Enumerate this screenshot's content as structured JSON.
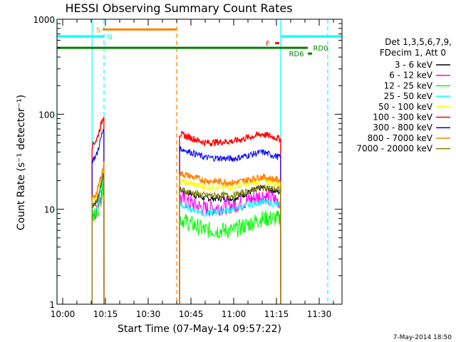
{
  "chart_data": {
    "type": "line",
    "title": "HESSI Observing Summary Count Rates",
    "xlabel": "Start Time (07-May-14 09:57:22)",
    "ylabel": "Count Rate (s⁻¹ detector⁻¹)",
    "yscale": "log",
    "ylim": [
      1,
      1000
    ],
    "xlim_minutes": [
      -2,
      98
    ],
    "x_unit": "minutes after 10:00 UT",
    "yticks": [
      "1",
      "10",
      "100",
      "1000"
    ],
    "xticks": [
      {
        "t": 0,
        "label": "10:00"
      },
      {
        "t": 15,
        "label": "10:15"
      },
      {
        "t": 30,
        "label": "10:30"
      },
      {
        "t": 45,
        "label": "10:45"
      },
      {
        "t": 60,
        "label": "11:00"
      },
      {
        "t": 75,
        "label": "11:15"
      },
      {
        "t": 90,
        "label": "11:30"
      }
    ],
    "legend": {
      "placement": "right",
      "header": [
        "Det 1,3,5,6,7,9,",
        "FDecim 1, Att 0"
      ],
      "entries": [
        {
          "label": "3 - 6 keV",
          "color": "#000000"
        },
        {
          "label": "6 - 12 keV",
          "color": "#ff00ff"
        },
        {
          "label": "12 - 25 keV",
          "color": "#00ff00"
        },
        {
          "label": "25 - 50 keV",
          "color": "#00ffff"
        },
        {
          "label": "50 - 100 keV",
          "color": "#ffff00"
        },
        {
          "label": "100 - 300 keV",
          "color": "#ff0000"
        },
        {
          "label": "300 - 800 keV",
          "color": "#0000ff"
        },
        {
          "label": "800 - 7000 keV",
          "color": "#ff8000"
        },
        {
          "label": "7000 - 20000 keV",
          "color": "#808000"
        }
      ]
    },
    "segments": [
      {
        "t_start": 10.3,
        "t_end": 14.5
      },
      {
        "t_start": 41.0,
        "t_end": 76.5
      }
    ],
    "series": [
      {
        "name": "3 - 6 keV",
        "color": "#000000",
        "points": [
          [
            10.3,
            11
          ],
          [
            12,
            12
          ],
          [
            14.5,
            25
          ],
          [
            41,
            16
          ],
          [
            50,
            13
          ],
          [
            60,
            13
          ],
          [
            70,
            17
          ],
          [
            76.5,
            15
          ]
        ]
      },
      {
        "name": "6 - 12 keV",
        "color": "#ff00ff",
        "points": [
          [
            10.3,
            9
          ],
          [
            12,
            10
          ],
          [
            14.5,
            20
          ],
          [
            41,
            13
          ],
          [
            50,
            10
          ],
          [
            60,
            11
          ],
          [
            70,
            14
          ],
          [
            76.5,
            12
          ]
        ]
      },
      {
        "name": "12 - 25 keV",
        "color": "#00ff00",
        "points": [
          [
            10.3,
            8
          ],
          [
            12,
            9
          ],
          [
            14.5,
            18
          ],
          [
            41,
            8
          ],
          [
            50,
            6
          ],
          [
            60,
            6
          ],
          [
            70,
            8
          ],
          [
            76.5,
            8
          ]
        ]
      },
      {
        "name": "25 - 50 keV",
        "color": "#00ffff",
        "points": [
          [
            10.3,
            9
          ],
          [
            12,
            10
          ],
          [
            14.5,
            22
          ],
          [
            41,
            11
          ],
          [
            50,
            9
          ],
          [
            60,
            10
          ],
          [
            70,
            12
          ],
          [
            76.5,
            11
          ]
        ]
      },
      {
        "name": "50 - 100 keV",
        "color": "#ffff00",
        "points": [
          [
            10.3,
            12
          ],
          [
            12,
            14
          ],
          [
            14.5,
            28
          ],
          [
            41,
            20
          ],
          [
            50,
            17
          ],
          [
            60,
            17
          ],
          [
            70,
            20
          ],
          [
            76.5,
            18
          ]
        ]
      },
      {
        "name": "100 - 300 keV",
        "color": "#ff0000",
        "points": [
          [
            10.3,
            46
          ],
          [
            12,
            55
          ],
          [
            14.5,
            100
          ],
          [
            41,
            62
          ],
          [
            50,
            50
          ],
          [
            60,
            52
          ],
          [
            70,
            62
          ],
          [
            76.5,
            55
          ]
        ]
      },
      {
        "name": "300 - 800 keV",
        "color": "#0000ff",
        "points": [
          [
            10.3,
            32
          ],
          [
            12,
            38
          ],
          [
            14.5,
            75
          ],
          [
            41,
            44
          ],
          [
            50,
            35
          ],
          [
            60,
            34
          ],
          [
            70,
            40
          ],
          [
            76.5,
            35
          ]
        ]
      },
      {
        "name": "800 - 7000 keV",
        "color": "#ff8000",
        "points": [
          [
            10.3,
            13
          ],
          [
            12,
            15
          ],
          [
            14.5,
            30
          ],
          [
            41,
            24
          ],
          [
            50,
            20
          ],
          [
            60,
            19
          ],
          [
            70,
            22
          ],
          [
            76.5,
            20
          ]
        ]
      },
      {
        "name": "7000 - 20000 keV",
        "color": "#808000",
        "points": [
          [
            10.3,
            11
          ],
          [
            12,
            12
          ],
          [
            14.5,
            25
          ],
          [
            41,
            16
          ],
          [
            50,
            14
          ],
          [
            60,
            14
          ],
          [
            70,
            17
          ],
          [
            76.5,
            16
          ]
        ]
      }
    ],
    "flags": [
      {
        "label": "S",
        "color": "#ff8000",
        "value": 780,
        "t_start": 14.0,
        "t_end": 40.0,
        "label_t": 12.5
      },
      {
        "label": "N",
        "color": "#00ffff",
        "value": 660,
        "t_start": -2.0,
        "t_end": 14.5,
        "label_t": 16.5
      },
      {
        "label": "N",
        "color": "#00ffff",
        "value": 660,
        "t_start": 76.5,
        "t_end": 98.0,
        "label_t": null
      },
      {
        "label": "F",
        "color": "#ff0000",
        "value": 560,
        "t_start": 74.5,
        "t_end": 76.0,
        "label_t": 72.0
      },
      {
        "label": "RD0",
        "color": "#008000",
        "value": 500,
        "t_start": -2.0,
        "t_end": 86.0,
        "label_t": 90.5
      },
      {
        "label": "RD6",
        "color": "#008000",
        "value": 435,
        "t_start": 86.0,
        "t_end": 87.5,
        "label_t": 82.0
      }
    ],
    "vlines": [
      {
        "t": 10.3,
        "color": "#00ffff",
        "style": "solid"
      },
      {
        "t": 14.5,
        "color": "#00ffff",
        "style": "dashed"
      },
      {
        "t": 40.0,
        "color": "#ff8000",
        "style": "dashed"
      },
      {
        "t": 76.5,
        "color": "#00ffff",
        "style": "solid"
      },
      {
        "t": 93.0,
        "color": "#00ffff",
        "style": "dashed"
      },
      {
        "t": -2.0,
        "color": "#00ffff",
        "style": "solid"
      }
    ],
    "footer": "7-May-2014 18:50"
  }
}
